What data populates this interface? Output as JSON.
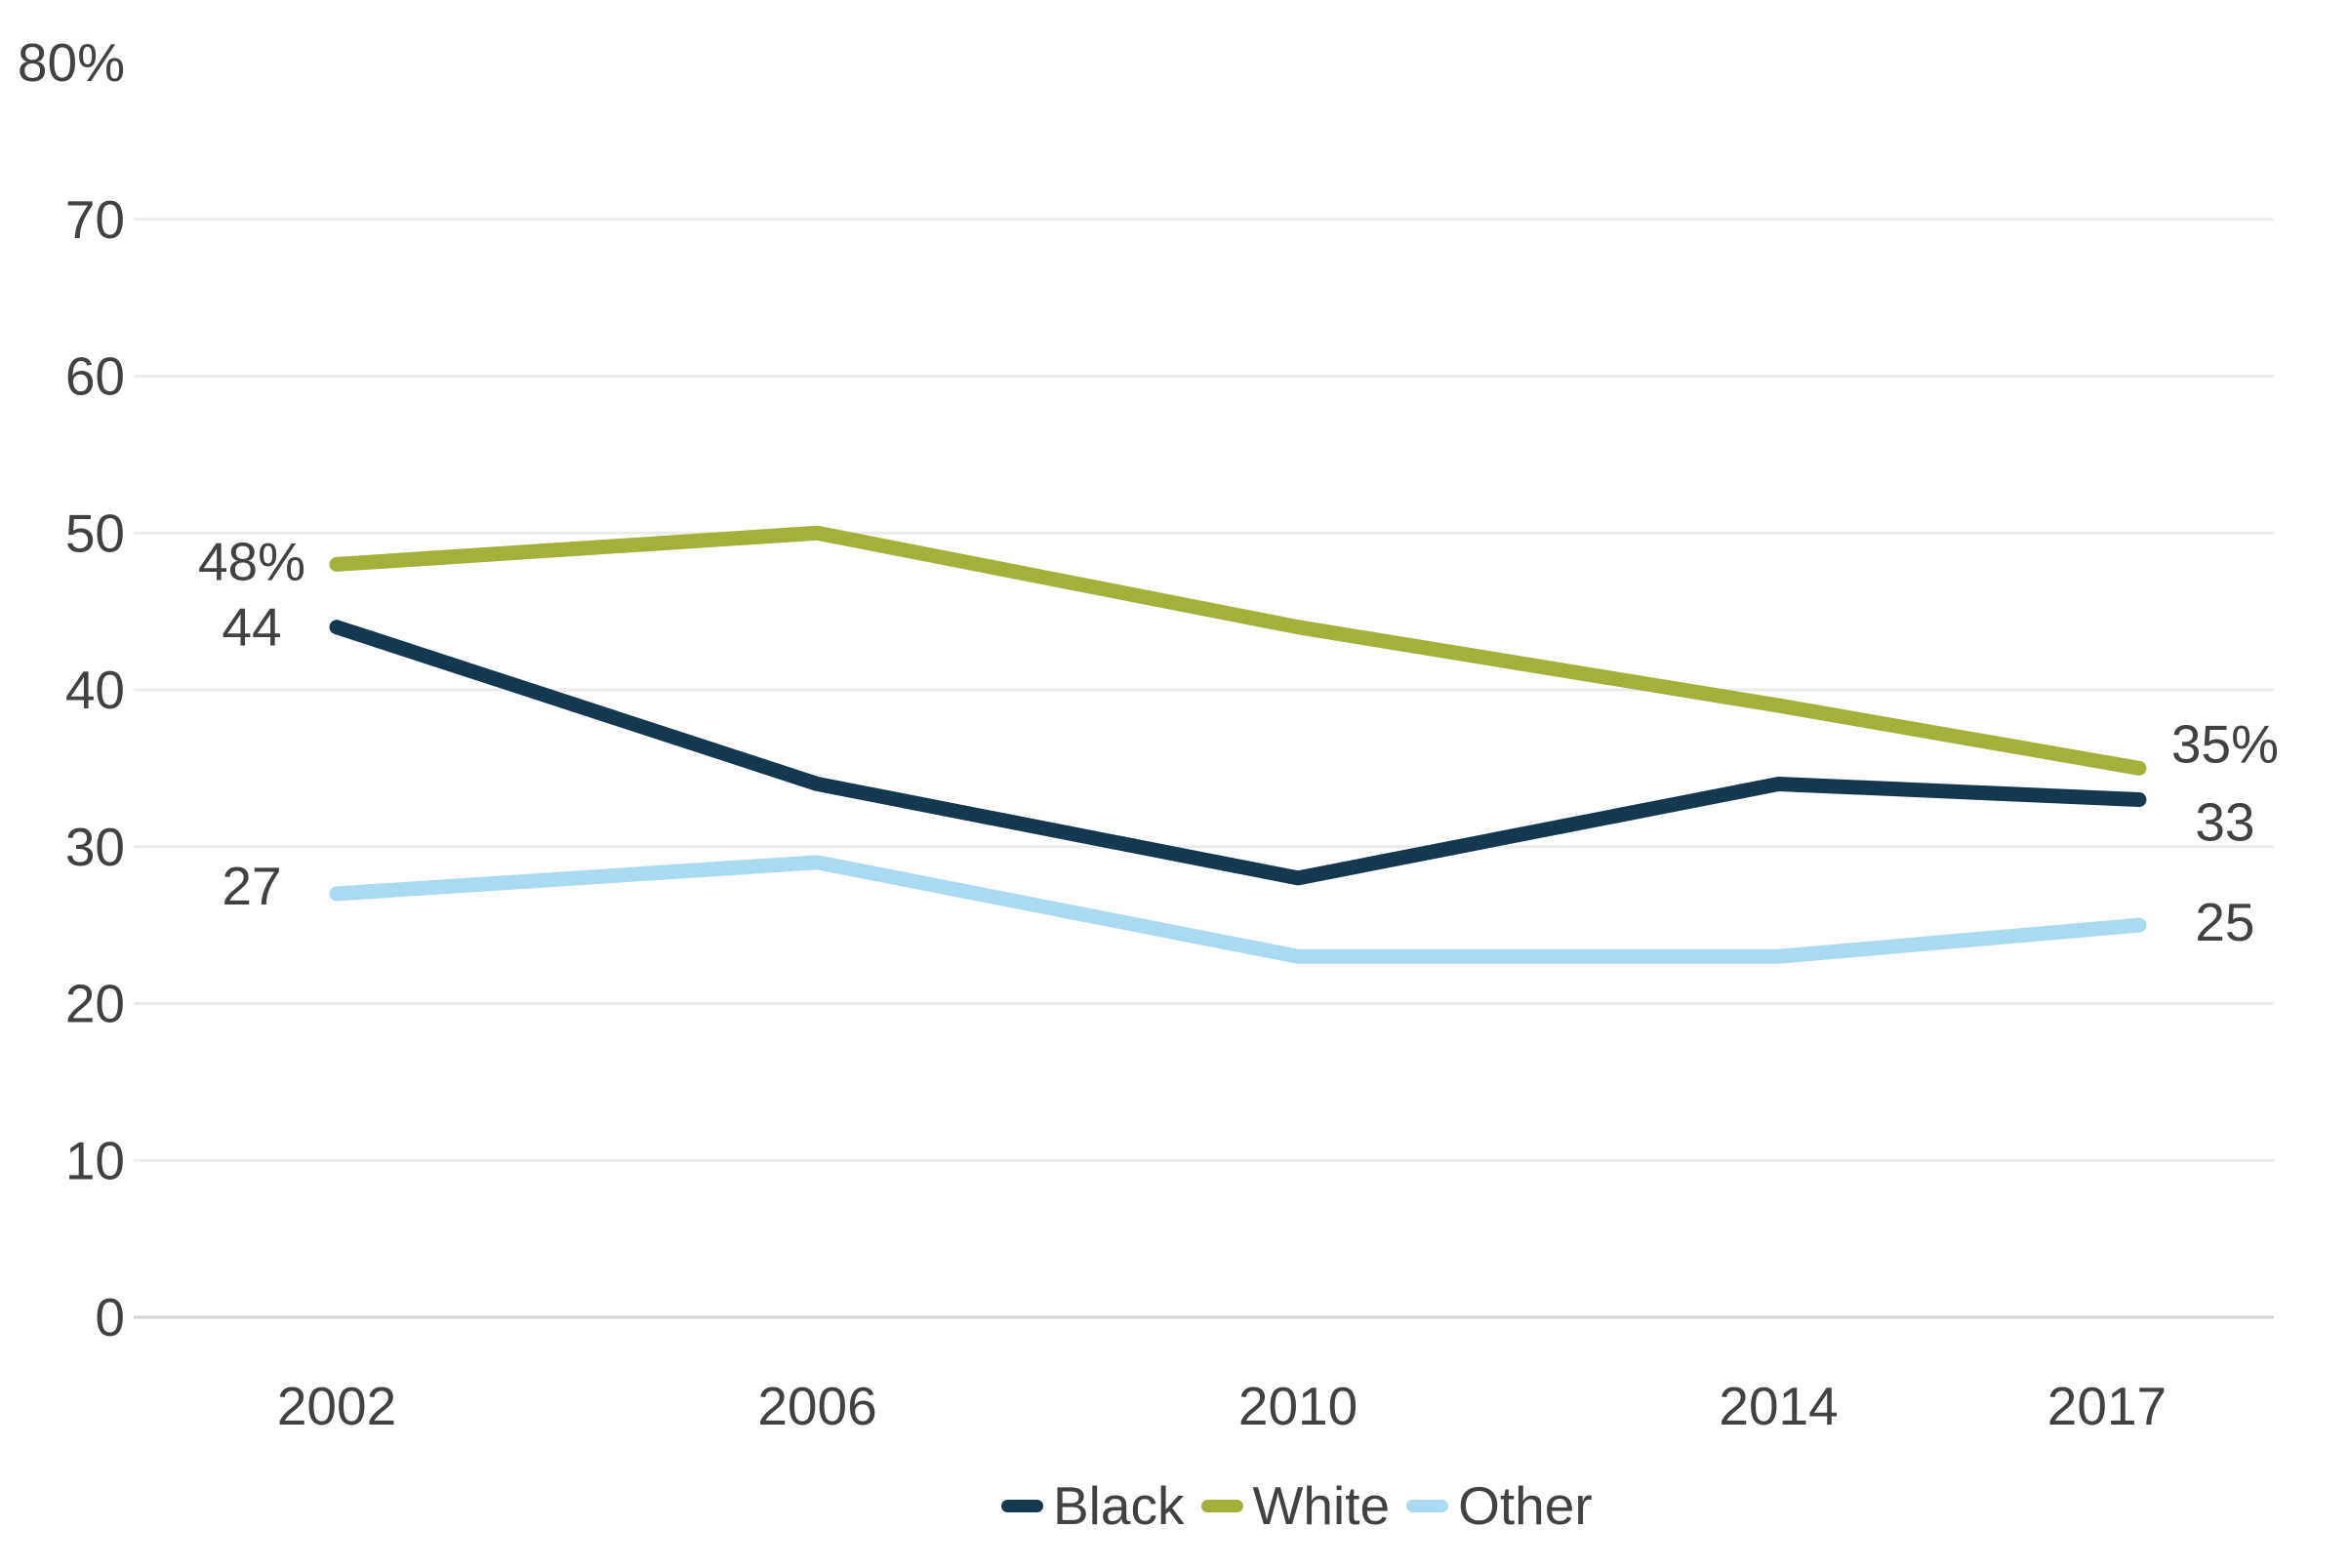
{
  "chart_data": {
    "type": "line",
    "title": "",
    "xlabel": "",
    "ylabel": "",
    "x": [
      2002,
      2006,
      2010,
      2014,
      2017
    ],
    "x_tick_labels": [
      "2002",
      "2006",
      "2010",
      "2014",
      "2017"
    ],
    "series": [
      {
        "name": "Black",
        "color": "#143850",
        "values": [
          44,
          34,
          28,
          34,
          33
        ]
      },
      {
        "name": "White",
        "color": "#a3b13a",
        "values": [
          48,
          50,
          44,
          39,
          35
        ]
      },
      {
        "name": "Other",
        "color": "#aad9f2",
        "values": [
          27,
          29,
          23,
          23,
          25
        ]
      }
    ],
    "y_axis": {
      "min": 0,
      "max": 80,
      "ticks": [
        80,
        70,
        60,
        50,
        40,
        30,
        20,
        10,
        0
      ],
      "top_tick_label": "80%",
      "gridline_ticks": [
        70,
        60,
        50,
        40,
        30,
        20,
        10
      ],
      "baseline_tick": 0
    },
    "grid": true,
    "legend_position": "bottom-center",
    "legend": [
      {
        "label": "Black",
        "color": "#143850"
      },
      {
        "label": "White",
        "color": "#a3b13a"
      },
      {
        "label": "Other",
        "color": "#aad9f2"
      }
    ],
    "point_labels": [
      {
        "series": "White",
        "year": 2002,
        "text": "48%",
        "side": "left",
        "dy": -3
      },
      {
        "series": "Black",
        "year": 2002,
        "text": "44",
        "side": "left",
        "dy": 0
      },
      {
        "series": "Other",
        "year": 2002,
        "text": "27",
        "side": "left",
        "dy": -8
      },
      {
        "series": "White",
        "year": 2017,
        "text": "35%",
        "side": "right",
        "dy": -25
      },
      {
        "series": "Black",
        "year": 2017,
        "text": "33",
        "side": "right",
        "dy": 23
      },
      {
        "series": "Other",
        "year": 2017,
        "text": "25",
        "side": "right",
        "dy": -3
      }
    ],
    "colors": {
      "gridline": "#ececec",
      "axis_line": "#d4d4d4",
      "tick_text": "#414141",
      "background": "#ffffff"
    }
  }
}
